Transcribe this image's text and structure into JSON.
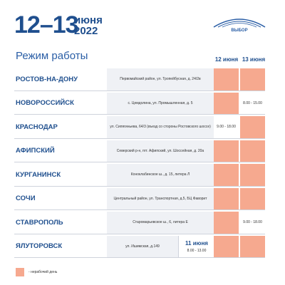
{
  "header": {
    "days": "12–13",
    "month": "июня",
    "year": "2022",
    "logo": "ВЫБОР"
  },
  "title": "Режим работы",
  "columns": [
    "12 июня",
    "13 июня"
  ],
  "rows": [
    {
      "city": "РОСТОВ-НА-ДОНУ",
      "address": "Первомайский район, ул. Тропейбусная, д. 24/2в",
      "cells": [
        {
          "closed": true
        },
        {
          "closed": true
        }
      ]
    },
    {
      "city": "НОВОРОССИЙСК",
      "address": "с. Цемдолина, ул. Промышленная, д. 5",
      "cells": [
        {
          "closed": true
        },
        {
          "hours": "8.00 - 15.00"
        }
      ]
    },
    {
      "city": "КРАСНОДАР",
      "address": "ул. Сипягиньева, 64/3 (въезд со стороны Ростовского шоссе)",
      "cells": [
        {
          "hours": "9.00 - 18.00"
        },
        {
          "closed": true
        }
      ]
    },
    {
      "city": "АФИПСКИЙ",
      "address": "Северский р-н, пгт. Афипский, ул. Шоссейная, д. 20а",
      "cells": [
        {
          "closed": true
        },
        {
          "closed": true
        }
      ]
    },
    {
      "city": "КУРГАНИНСК",
      "address": "Коноклабинское ш., д. 15, литера Л",
      "cells": [
        {
          "closed": true
        },
        {
          "closed": true
        }
      ]
    },
    {
      "city": "СОЧИ",
      "address": "Центральный район, ул. Транспортная, д.5, БЦ Фаворит",
      "cells": [
        {
          "closed": true
        },
        {
          "closed": true
        }
      ]
    },
    {
      "city": "СТАВРОПОЛЬ",
      "address": "Старомарьевское ш., 6, литера Е",
      "cells": [
        {
          "closed": true
        },
        {
          "hours": "9.00 - 18.00"
        }
      ]
    },
    {
      "city": "ЯЛУТОРОВСК",
      "address": "ул. Ишимская, д.149",
      "extra": {
        "date": "11 июня",
        "hours": "8.00 - 13.00"
      },
      "cells": [
        {
          "closed": true
        },
        {
          "closed": true
        }
      ]
    }
  ],
  "legend": "- нерабочий день"
}
